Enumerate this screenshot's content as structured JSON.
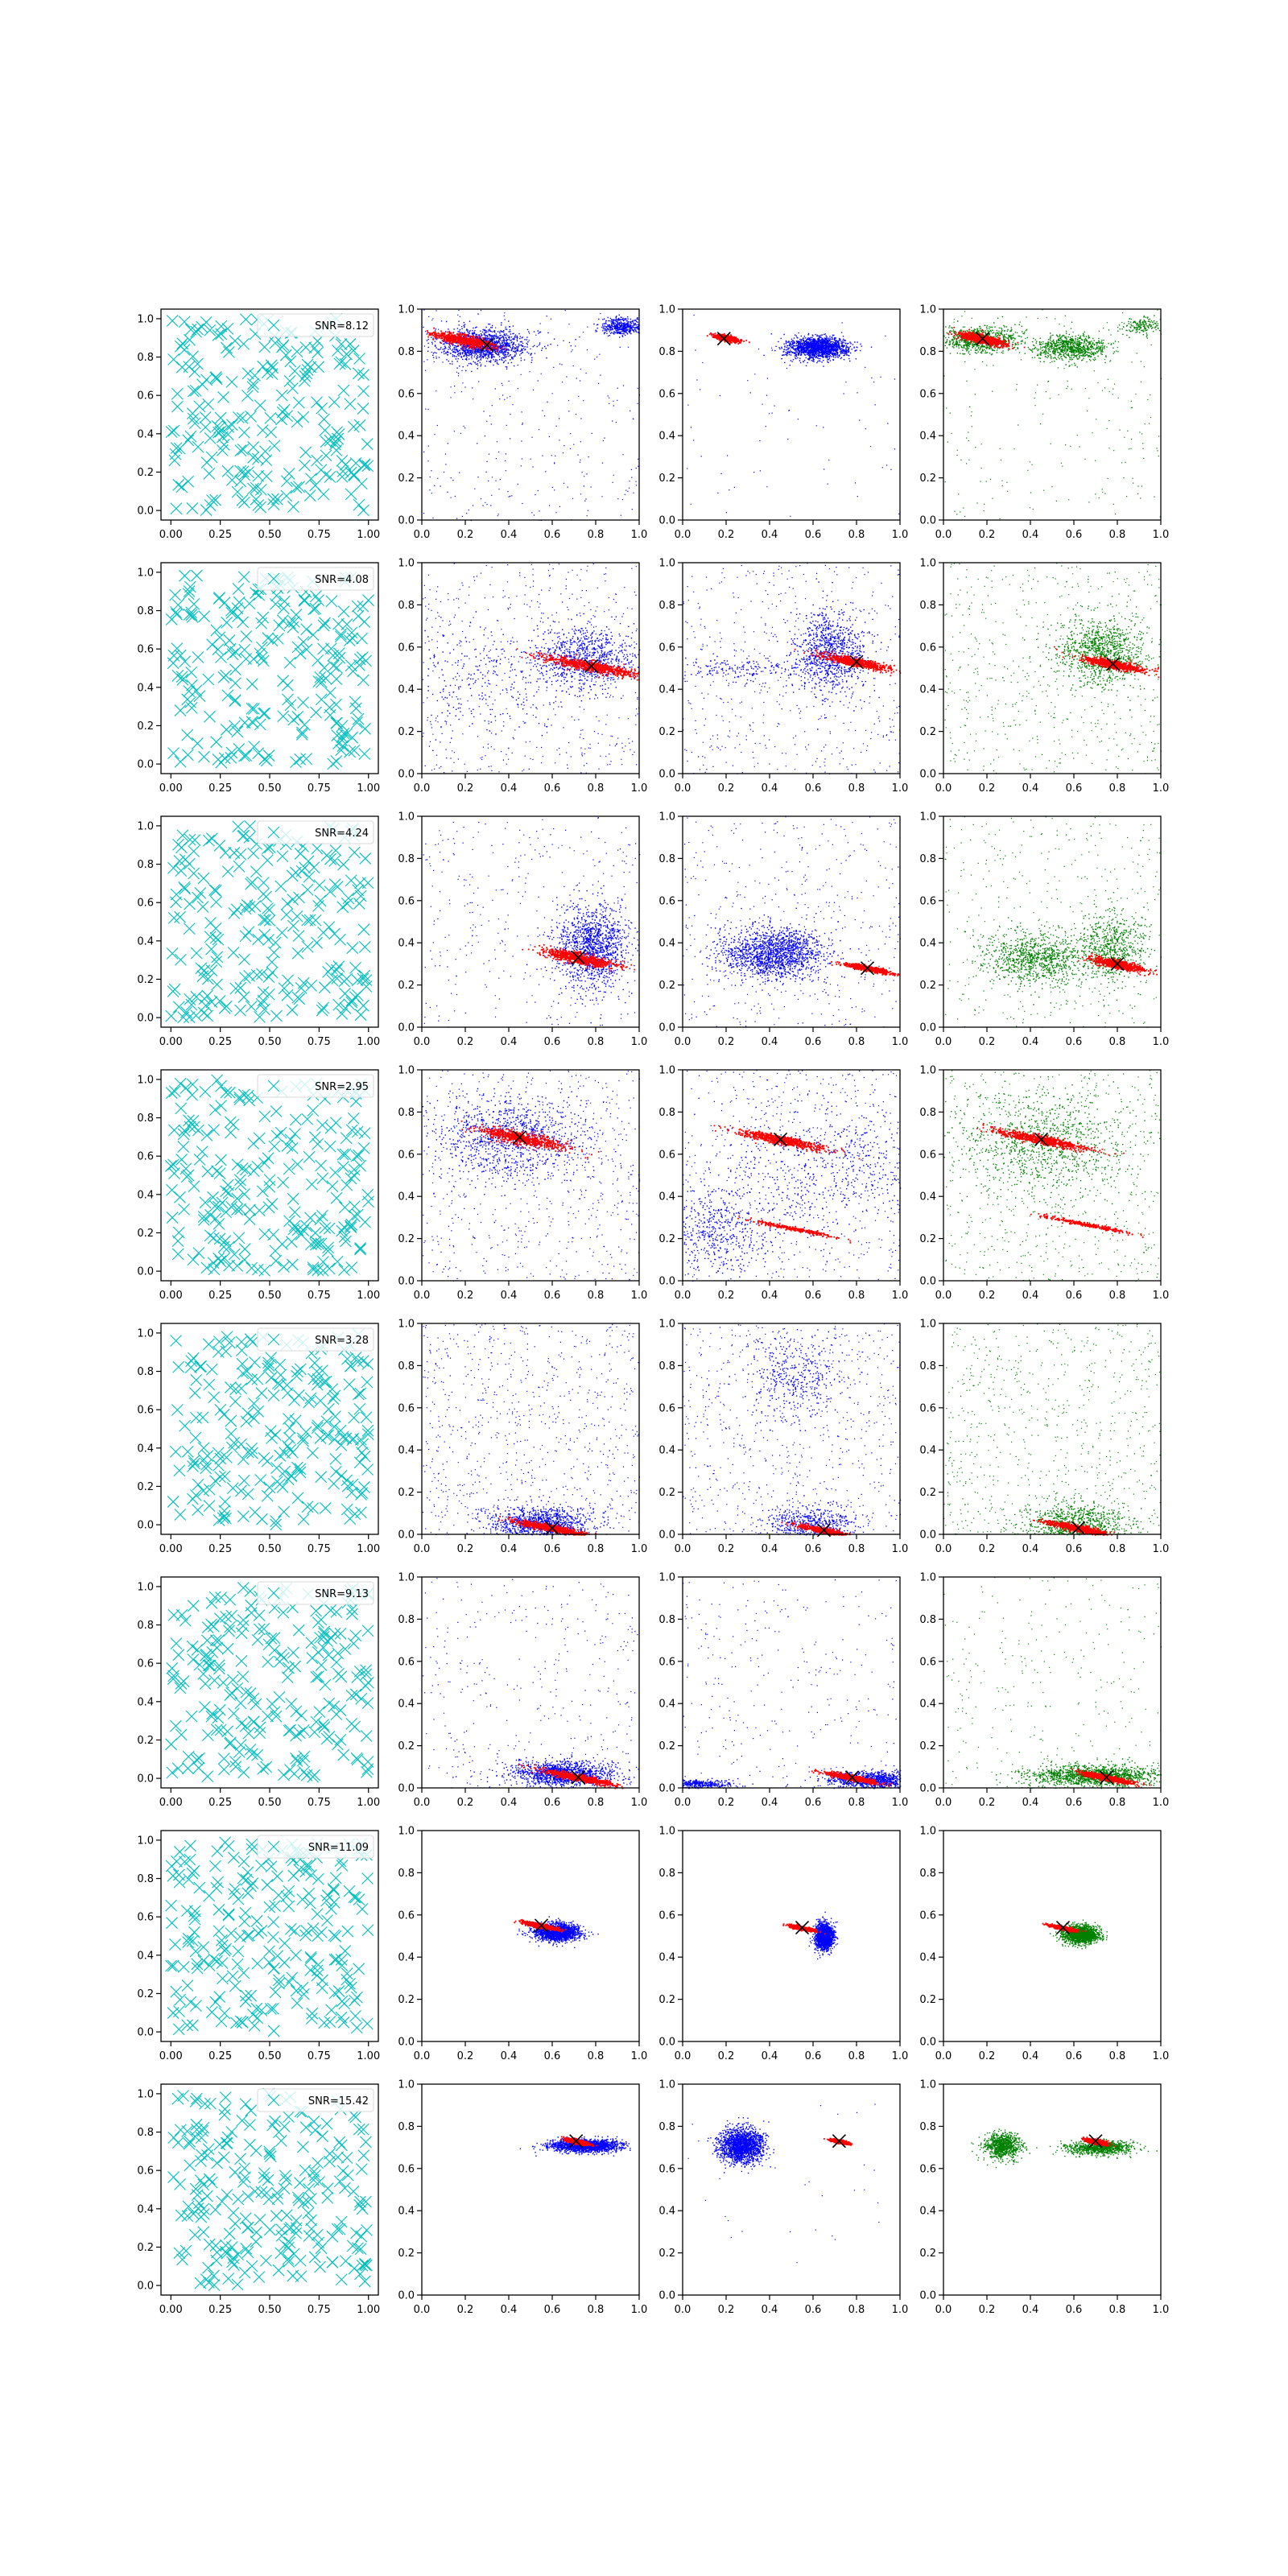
{
  "figure": {
    "background": "#ffffff"
  },
  "colors": {
    "cross": "#00bfbf",
    "blue": "#0000ff",
    "red": "#ff0000",
    "green": "#008000",
    "centroid": "#000000"
  },
  "chart_data": {
    "type": "scatter",
    "grid": false,
    "legend_position": "top-right (column 1 only)",
    "column_series": [
      "random-uniform crosses",
      "blue+red scatter",
      "blue+red scatter",
      "green+red scatter"
    ],
    "first_column_axes": {
      "xlim": [
        -0.05,
        1.05
      ],
      "ylim": [
        -0.05,
        1.05
      ],
      "xticks": [
        "0.00",
        "0.25",
        "0.50",
        "0.75",
        "1.00"
      ],
      "yticks": [
        "0.0",
        "0.2",
        "0.4",
        "0.6",
        "0.8",
        "1.0"
      ]
    },
    "other_axes": {
      "xlim": [
        0,
        1
      ],
      "ylim": [
        0,
        1
      ],
      "xticks": [
        "0.0",
        "0.2",
        "0.4",
        "0.6",
        "0.8",
        "1.0"
      ],
      "yticks": [
        "0.0",
        "0.2",
        "0.4",
        "0.6",
        "0.8",
        "1.0"
      ]
    },
    "rows": [
      {
        "legend": "SNR=8.12",
        "p2": {
          "blue": [
            [
              0.28,
              0.83,
              0.1,
              0.04,
              0.75
            ],
            [
              0.92,
              0.92,
              0.05,
              0.02,
              0.25
            ]
          ],
          "red": [
            [
              0.19,
              0.855,
              0.14,
              0.025,
              0.9
            ]
          ],
          "scatter": 0.22,
          "cross": [
            0.3,
            0.83
          ]
        },
        "p3": {
          "blue": [
            [
              0.62,
              0.82,
              0.07,
              0.025,
              0.9
            ]
          ],
          "red": [
            [
              0.2,
              0.865,
              0.06,
              0.012,
              1
            ]
          ],
          "scatter": 0.05,
          "cross": [
            0.19,
            0.86
          ]
        },
        "p4": {
          "green": [
            [
              0.17,
              0.86,
              0.09,
              0.03,
              0.45
            ],
            [
              0.58,
              0.82,
              0.08,
              0.03,
              0.45
            ],
            [
              0.92,
              0.92,
              0.05,
              0.02,
              0.1
            ]
          ],
          "red": [
            [
              0.18,
              0.86,
              0.11,
              0.02,
              1
            ]
          ],
          "scatter": 0.15,
          "cross": [
            0.18,
            0.86
          ]
        }
      },
      {
        "legend": "SNR=4.08",
        "p2": {
          "blue": [
            [
              0.75,
              0.55,
              0.12,
              0.07,
              0.45
            ],
            [
              0.25,
              0.45,
              0.25,
              0.15,
              0.15
            ]
          ],
          "red": [
            [
              0.78,
              0.51,
              0.22,
              0.025,
              1
            ]
          ],
          "scatter": 0.4,
          "cross": [
            0.78,
            0.51
          ]
        },
        "p3": {
          "blue": [
            [
              0.68,
              0.58,
              0.08,
              0.1,
              0.5
            ],
            [
              0.3,
              0.5,
              0.2,
              0.03,
              0.1
            ]
          ],
          "red": [
            [
              0.8,
              0.53,
              0.16,
              0.02,
              1
            ]
          ],
          "scatter": 0.35,
          "cross": [
            0.8,
            0.53
          ]
        },
        "p4": {
          "green": [
            [
              0.72,
              0.58,
              0.1,
              0.08,
              0.55
            ]
          ],
          "red": [
            [
              0.78,
              0.52,
              0.14,
              0.02,
              1
            ]
          ],
          "scatter": 0.4,
          "cross": [
            0.78,
            0.52
          ]
        }
      },
      {
        "legend": "SNR=4.24",
        "p2": {
          "blue": [
            [
              0.78,
              0.38,
              0.08,
              0.1,
              0.7
            ]
          ],
          "red": [
            [
              0.72,
              0.33,
              0.16,
              0.025,
              1
            ]
          ],
          "scatter": 0.25,
          "cross": [
            0.72,
            0.33
          ]
        },
        "p3": {
          "blue": [
            [
              0.42,
              0.35,
              0.12,
              0.06,
              0.85
            ]
          ],
          "red": [
            [
              0.85,
              0.28,
              0.1,
              0.012,
              1
            ]
          ],
          "scatter": 0.3,
          "cross": [
            0.85,
            0.28
          ]
        },
        "p4": {
          "green": [
            [
              0.42,
              0.33,
              0.12,
              0.06,
              0.5
            ],
            [
              0.78,
              0.38,
              0.08,
              0.08,
              0.35
            ]
          ],
          "red": [
            [
              0.8,
              0.3,
              0.12,
              0.02,
              1
            ]
          ],
          "scatter": 0.3,
          "cross": [
            0.8,
            0.3
          ]
        }
      },
      {
        "legend": "SNR=2.95",
        "p2": {
          "blue": [
            [
              0.4,
              0.68,
              0.18,
              0.1,
              0.55
            ]
          ],
          "red": [
            [
              0.45,
              0.68,
              0.2,
              0.03,
              1
            ]
          ],
          "scatter": 0.45,
          "cross": [
            0.45,
            0.68
          ]
        },
        "p3": {
          "blue": [
            [
              0.15,
              0.25,
              0.15,
              0.1,
              0.3
            ],
            [
              0.7,
              0.55,
              0.25,
              0.15,
              0.3
            ]
          ],
          "red": [
            [
              0.45,
              0.67,
              0.2,
              0.02,
              1
            ],
            [
              0.5,
              0.25,
              0.2,
              0.01,
              0.4
            ]
          ],
          "scatter": 0.4,
          "cross": [
            0.45,
            0.67
          ]
        },
        "p4": {
          "green": [
            [
              0.45,
              0.65,
              0.2,
              0.12,
              0.5
            ]
          ],
          "red": [
            [
              0.45,
              0.67,
              0.2,
              0.02,
              1
            ],
            [
              0.65,
              0.27,
              0.2,
              0.01,
              0.4
            ]
          ],
          "scatter": 0.45,
          "cross": [
            0.45,
            0.67
          ]
        }
      },
      {
        "legend": "SNR=3.28",
        "p2": {
          "blue": [
            [
              0.55,
              0.05,
              0.12,
              0.04,
              0.6
            ]
          ],
          "red": [
            [
              0.6,
              0.03,
              0.18,
              0.015,
              1
            ]
          ],
          "scatter": 0.55,
          "cross": [
            0.6,
            0.03
          ]
        },
        "p3": {
          "blue": [
            [
              0.5,
              0.75,
              0.1,
              0.1,
              0.2
            ],
            [
              0.6,
              0.05,
              0.1,
              0.04,
              0.3
            ]
          ],
          "red": [
            [
              0.65,
              0.02,
              0.12,
              0.012,
              1
            ]
          ],
          "scatter": 0.5,
          "cross": [
            0.65,
            0.02
          ]
        },
        "p4": {
          "green": [
            [
              0.6,
              0.05,
              0.12,
              0.05,
              0.5
            ]
          ],
          "red": [
            [
              0.62,
              0.03,
              0.14,
              0.015,
              1
            ]
          ],
          "scatter": 0.5,
          "cross": [
            0.62,
            0.03
          ]
        }
      },
      {
        "legend": "SNR=9.13",
        "p2": {
          "blue": [
            [
              0.65,
              0.07,
              0.12,
              0.03,
              0.7
            ]
          ],
          "red": [
            [
              0.72,
              0.05,
              0.16,
              0.015,
              1
            ]
          ],
          "scatter": 0.25,
          "cross": [
            0.72,
            0.05
          ]
        },
        "p3": {
          "blue": [
            [
              0.88,
              0.04,
              0.1,
              0.02,
              0.55
            ],
            [
              0.08,
              0.02,
              0.08,
              0.01,
              0.2
            ]
          ],
          "red": [
            [
              0.78,
              0.05,
              0.12,
              0.012,
              1
            ]
          ],
          "scatter": 0.2,
          "cross": [
            0.78,
            0.05
          ]
        },
        "p4": {
          "green": [
            [
              0.7,
              0.06,
              0.15,
              0.025,
              0.8
            ]
          ],
          "red": [
            [
              0.75,
              0.05,
              0.12,
              0.012,
              1
            ]
          ],
          "scatter": 0.2,
          "cross": [
            0.75,
            0.05
          ]
        }
      },
      {
        "legend": "SNR=11.09",
        "p2": {
          "blue": [
            [
              0.62,
              0.52,
              0.05,
              0.02,
              1
            ]
          ],
          "red": [
            [
              0.55,
              0.55,
              0.08,
              0.01,
              1
            ]
          ],
          "scatter": 0.0,
          "cross": [
            0.55,
            0.55
          ]
        },
        "p3": {
          "blue": [
            [
              0.65,
              0.5,
              0.02,
              0.03,
              1
            ]
          ],
          "red": [
            [
              0.55,
              0.54,
              0.06,
              0.008,
              1
            ]
          ],
          "scatter": 0.0,
          "cross": [
            0.55,
            0.54
          ]
        },
        "p4": {
          "green": [
            [
              0.63,
              0.51,
              0.04,
              0.02,
              1
            ]
          ],
          "red": [
            [
              0.55,
              0.54,
              0.06,
              0.008,
              1
            ]
          ],
          "scatter": 0.0,
          "cross": [
            0.55,
            0.54
          ]
        }
      },
      {
        "legend": "SNR=15.42",
        "p2": {
          "blue": [
            [
              0.75,
              0.71,
              0.08,
              0.015,
              1
            ]
          ],
          "red": [
            [
              0.71,
              0.73,
              0.05,
              0.01,
              1
            ]
          ],
          "scatter": 0.0,
          "cross": [
            0.71,
            0.73
          ]
        },
        "p3": {
          "blue": [
            [
              0.27,
              0.71,
              0.05,
              0.04,
              1
            ]
          ],
          "red": [
            [
              0.72,
              0.73,
              0.04,
              0.008,
              1
            ]
          ],
          "scatter": 0.02,
          "cross": [
            0.72,
            0.73
          ]
        },
        "p4": {
          "green": [
            [
              0.27,
              0.71,
              0.04,
              0.03,
              0.5
            ],
            [
              0.72,
              0.7,
              0.07,
              0.015,
              0.5
            ]
          ],
          "red": [
            [
              0.7,
              0.73,
              0.05,
              0.01,
              1
            ]
          ],
          "scatter": 0.0,
          "cross": [
            0.7,
            0.73
          ]
        }
      }
    ]
  }
}
